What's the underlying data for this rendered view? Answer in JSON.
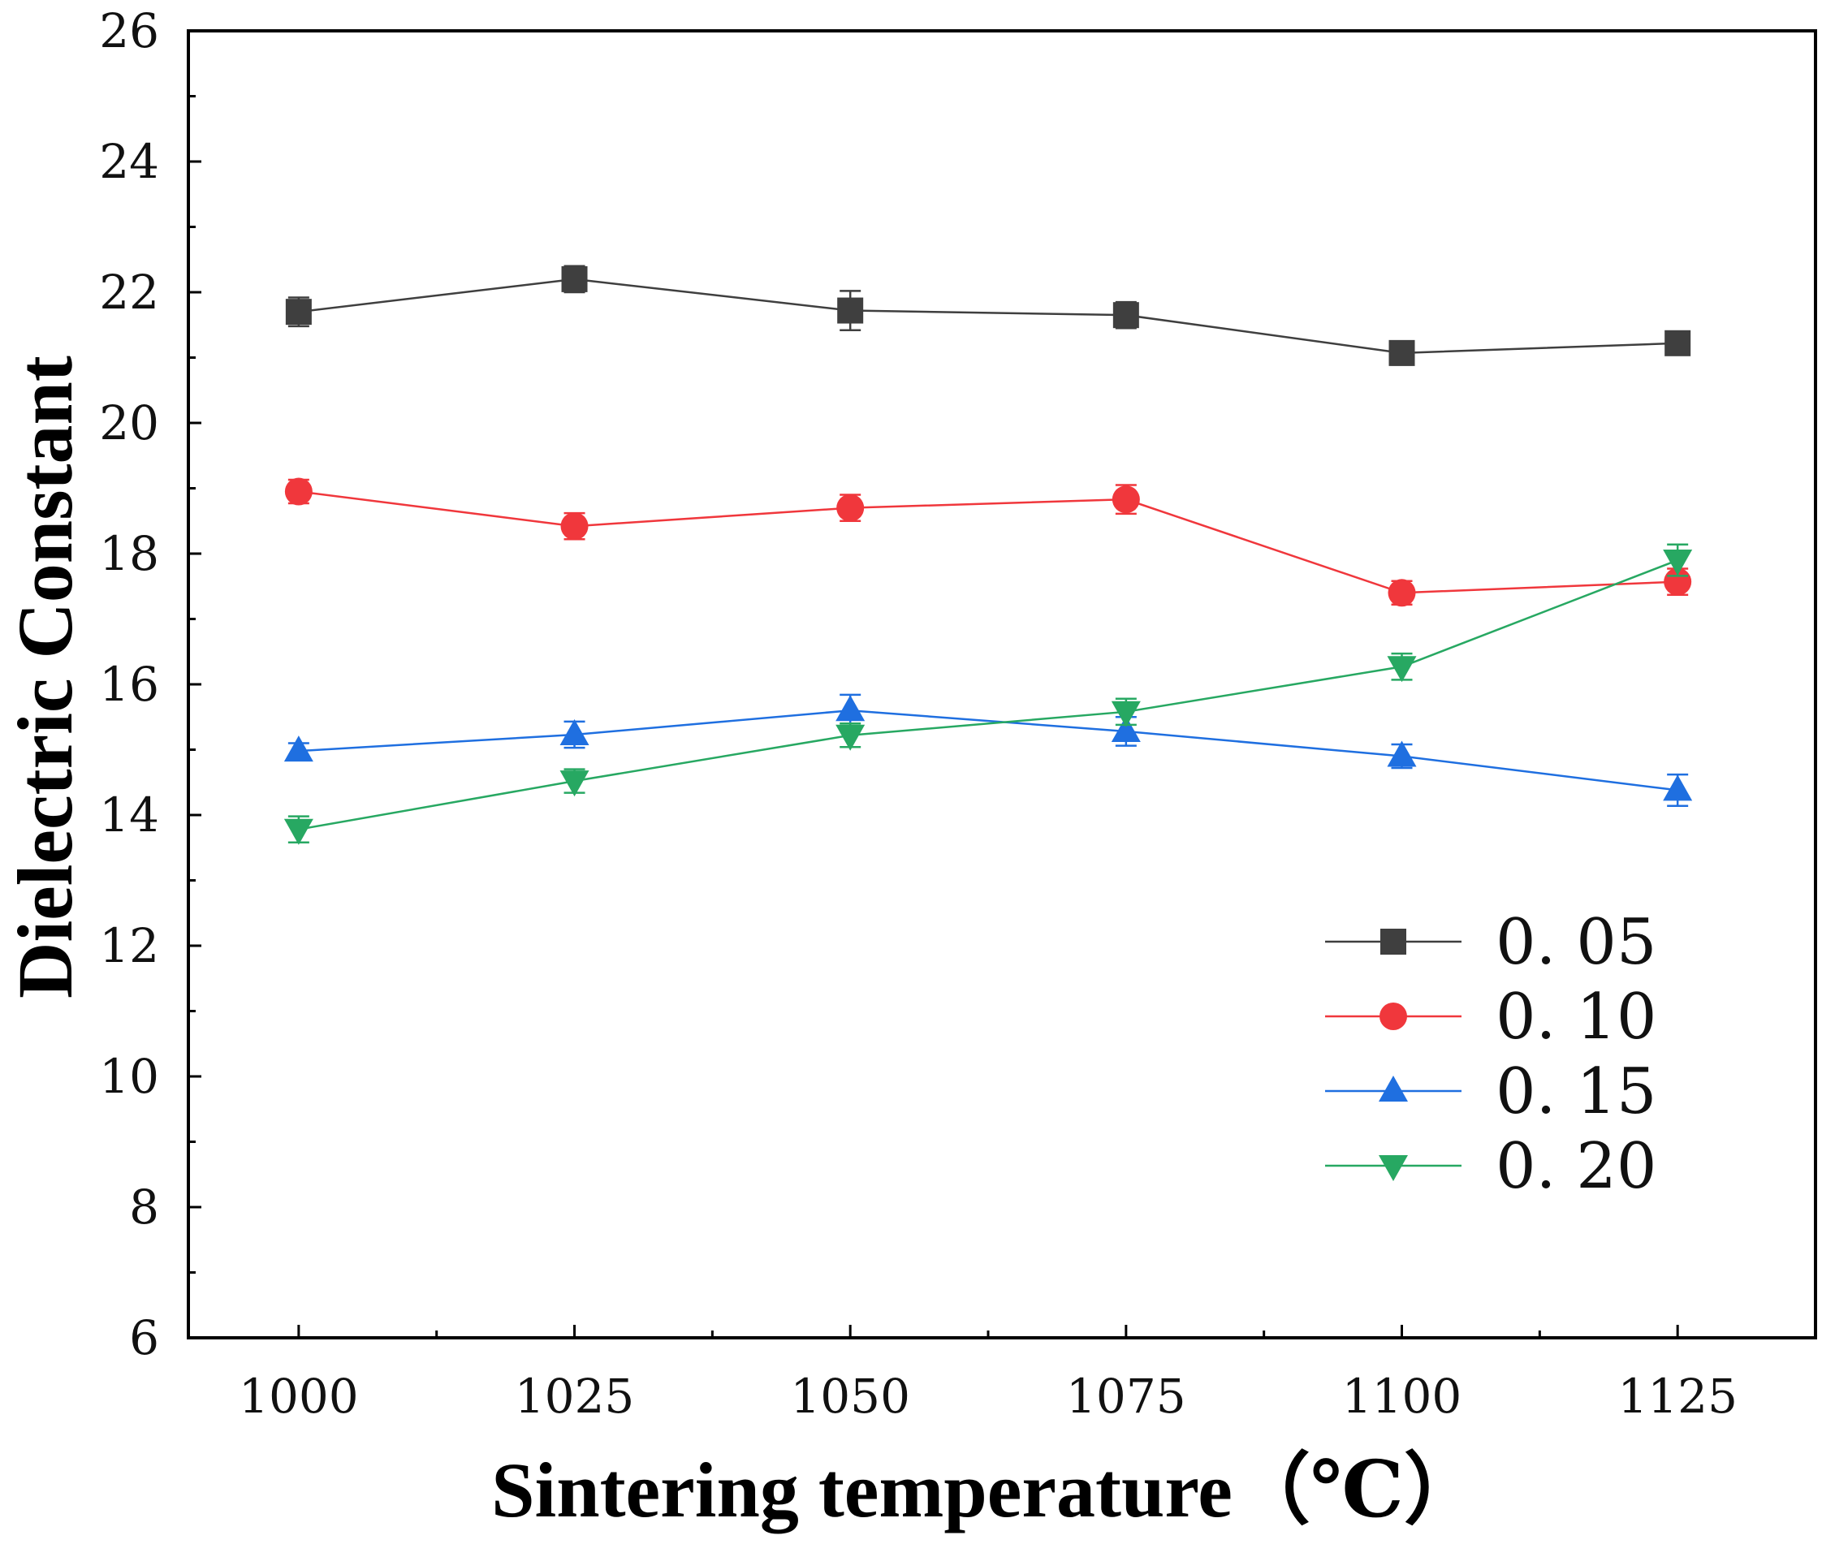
{
  "chart_data": {
    "type": "line",
    "title": "",
    "xlabel": "Sintering temperature（℃）",
    "ylabel": "Dielectric Constant",
    "x": [
      1000,
      1025,
      1050,
      1075,
      1100,
      1125
    ],
    "xticks": [
      "1000",
      "1025",
      "1050",
      "1075",
      "1100",
      "1125"
    ],
    "xlim": [
      990,
      1137.5
    ],
    "ylim": [
      6,
      26
    ],
    "yticks": [
      "6",
      "8",
      "10",
      "12",
      "14",
      "16",
      "18",
      "20",
      "22",
      "24",
      "26"
    ],
    "grid": false,
    "legend_position": "bottom-right",
    "series": [
      {
        "name": "0. 05",
        "marker": "square",
        "color": "#3f3f3f",
        "values": [
          21.7,
          22.2,
          21.72,
          21.65,
          21.07,
          21.22
        ],
        "errors": [
          0.22,
          0.2,
          0.3,
          0.2,
          0.18,
          0.18
        ]
      },
      {
        "name": "0. 10",
        "marker": "circle",
        "color": "#f0373c",
        "values": [
          18.95,
          18.42,
          18.7,
          18.83,
          17.4,
          17.57
        ],
        "errors": [
          0.18,
          0.2,
          0.2,
          0.22,
          0.18,
          0.2
        ]
      },
      {
        "name": "0. 15",
        "marker": "triangle-up",
        "color": "#1f6fe0",
        "values": [
          14.98,
          15.23,
          15.6,
          15.28,
          14.9,
          14.38
        ],
        "errors": [
          0.12,
          0.2,
          0.24,
          0.22,
          0.18,
          0.24
        ]
      },
      {
        "name": "0. 20",
        "marker": "triangle-down",
        "color": "#27a862",
        "values": [
          13.78,
          14.52,
          15.22,
          15.58,
          16.27,
          17.9
        ],
        "errors": [
          0.2,
          0.18,
          0.18,
          0.2,
          0.2,
          0.24
        ]
      }
    ]
  }
}
